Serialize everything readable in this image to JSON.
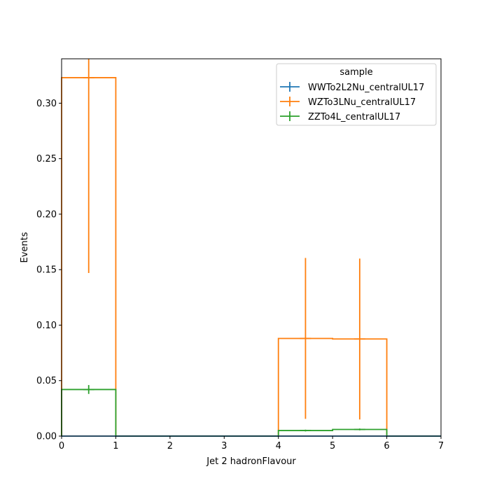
{
  "chart_data": {
    "type": "histogram",
    "xlabel": "Jet 2 hadronFlavour",
    "ylabel": "Events",
    "xlim": [
      0,
      7
    ],
    "ylim": [
      0,
      0.34
    ],
    "xticks": [
      0,
      1,
      2,
      3,
      4,
      5,
      6,
      7
    ],
    "yticks": [
      0.0,
      0.05,
      0.1,
      0.15,
      0.2,
      0.25,
      0.3
    ],
    "ytick_labels": [
      "0.00",
      "0.05",
      "0.10",
      "0.15",
      "0.20",
      "0.25",
      "0.30"
    ],
    "bin_edges": [
      0,
      1,
      2,
      3,
      4,
      5,
      6,
      7
    ],
    "legend": {
      "title": "sample",
      "placement": "upper right"
    },
    "series": [
      {
        "name": "WWTo2L2Nu_centralUL17",
        "color": "#1f77b4",
        "values": [
          0,
          0,
          0,
          0,
          0,
          0,
          0
        ],
        "errors": [
          0,
          0,
          0,
          0,
          0,
          0,
          0
        ]
      },
      {
        "name": "WZTo3LNu_centralUL17",
        "color": "#ff7f0e",
        "values": [
          0.323,
          0,
          0,
          0,
          0.088,
          0.0875,
          0
        ],
        "errors": [
          0.176,
          0,
          0,
          0,
          0.0725,
          0.0725,
          0
        ]
      },
      {
        "name": "ZZTo4L_centralUL17",
        "color": "#2ca02c",
        "values": [
          0.042,
          0,
          0,
          0,
          0.005,
          0.006,
          0
        ],
        "errors": [
          0.004,
          0,
          0,
          0,
          0.0008,
          0.0008,
          0
        ]
      }
    ]
  }
}
